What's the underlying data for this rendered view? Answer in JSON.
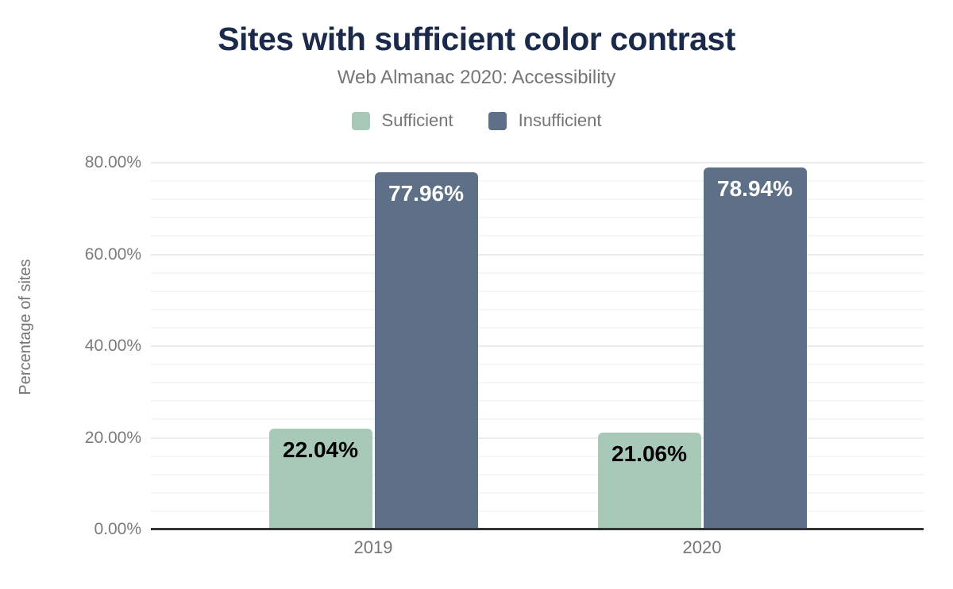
{
  "chart_data": {
    "type": "bar",
    "title": "Sites with sufficient color contrast",
    "subtitle": "Web Almanac 2020: Accessibility",
    "ylabel": "Percentage of sites",
    "xlabel": "",
    "categories": [
      "2019",
      "2020"
    ],
    "series": [
      {
        "name": "Sufficient",
        "color": "#a8c9b8",
        "label_color": "#000000",
        "values": [
          22.04,
          21.06
        ],
        "labels": [
          "22.04%",
          "21.06%"
        ]
      },
      {
        "name": "Insufficient",
        "color": "#5e7088",
        "label_color": "#ffffff",
        "values": [
          77.96,
          78.94
        ],
        "labels": [
          "77.96%",
          "78.94%"
        ]
      }
    ],
    "y_axis": {
      "min": 0,
      "max": 80,
      "major_step": 20,
      "minor_step": 4,
      "tick_values": [
        0,
        20,
        40,
        60,
        80
      ],
      "tick_labels": [
        "0.00%",
        "20.00%",
        "40.00%",
        "60.00%",
        "80.00%"
      ]
    },
    "legend_position": "top",
    "grid": true,
    "colors": {
      "title": "#1b2a4b",
      "subtitle": "#757575",
      "legend_text": "#757575",
      "axis_text": "#7b7b7b",
      "major_gridline": "#ececec",
      "minor_gridline": "#f6f6f6",
      "axis_line": "#333333",
      "background": "#ffffff"
    }
  }
}
